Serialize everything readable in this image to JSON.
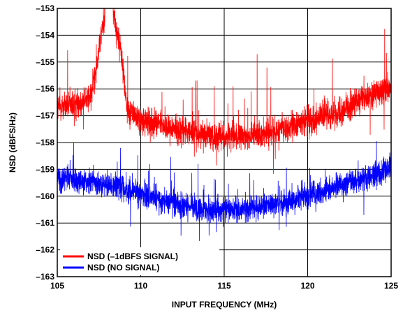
{
  "chart_data": {
    "type": "line",
    "xlabel": "INPUT FREQUENCY (MHz)",
    "ylabel": "NSD (dBFS/Hz)",
    "xlim": [
      105,
      125
    ],
    "ylim": [
      -163,
      -153
    ],
    "x_ticks": [
      105,
      110,
      115,
      120,
      125
    ],
    "y_ticks": [
      -163,
      -162,
      -161,
      -160,
      -159,
      -158,
      -157,
      -156,
      -155,
      -154,
      -153
    ],
    "x_tick_labels": [
      "105",
      "110",
      "115",
      "120",
      "125"
    ],
    "y_tick_labels": [
      "–163",
      "–162",
      "–161",
      "–160",
      "–159",
      "–158",
      "–157",
      "–156",
      "–155",
      "–154",
      "–153"
    ],
    "grid": true,
    "legend_position": "bottom-left",
    "series": [
      {
        "name": "NSD (–1dBFS SIGNAL)",
        "color": "#ff0000",
        "x": [
          105,
          106,
          107,
          107.5,
          107.9,
          108.3,
          108.8,
          109.2,
          110,
          111,
          112,
          113,
          114,
          115,
          116,
          117,
          118,
          119,
          120,
          121,
          122,
          123,
          124,
          125
        ],
        "y": [
          -156.7,
          -156.6,
          -156.3,
          -154.5,
          -153,
          -153,
          -154.5,
          -156.8,
          -157.2,
          -157.3,
          -157.5,
          -157.6,
          -157.7,
          -157.8,
          -157.8,
          -157.7,
          -157.6,
          -157.4,
          -157.2,
          -157,
          -156.8,
          -156.5,
          -156.2,
          -155.9
        ]
      },
      {
        "name": "NSD (NO SIGNAL)",
        "color": "#0000ff",
        "x": [
          105,
          106,
          107,
          108,
          109,
          110,
          111,
          112,
          113,
          114,
          115,
          116,
          117,
          118,
          119,
          120,
          121,
          122,
          123,
          124,
          125
        ],
        "y": [
          -159.3,
          -159.4,
          -159.5,
          -159.6,
          -159.7,
          -159.9,
          -160.1,
          -160.3,
          -160.4,
          -160.5,
          -160.5,
          -160.5,
          -160.4,
          -160.3,
          -160.2,
          -160.0,
          -159.8,
          -159.6,
          -159.4,
          -159.2,
          -159.0
        ]
      }
    ]
  }
}
